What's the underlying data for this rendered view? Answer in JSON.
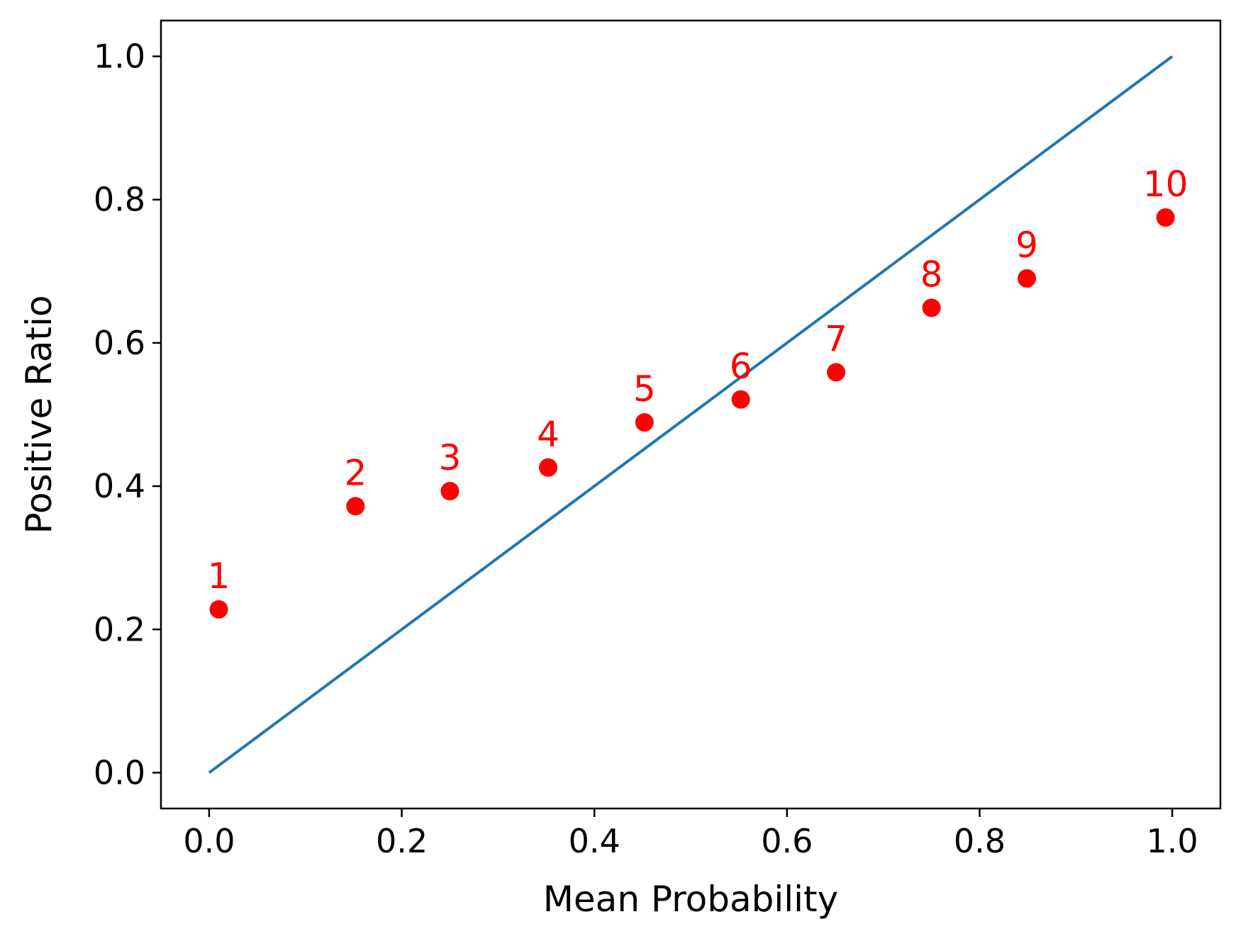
{
  "chart_data": {
    "type": "scatter",
    "title": "",
    "xlabel": "Mean Probability",
    "ylabel": "Positive Ratio",
    "xlim": [
      -0.05,
      1.05
    ],
    "ylim": [
      -0.05,
      1.05
    ],
    "xticks": [
      0.0,
      0.2,
      0.4,
      0.6,
      0.8,
      1.0
    ],
    "yticks": [
      0.0,
      0.2,
      0.4,
      0.6,
      0.8,
      1.0
    ],
    "tick_labels": {
      "x": [
        "0.0",
        "0.2",
        "0.4",
        "0.6",
        "0.8",
        "1.0"
      ],
      "y": [
        "0.0",
        "0.2",
        "0.4",
        "0.6",
        "0.8",
        "1.0"
      ]
    },
    "grid": false,
    "reference_line": {
      "x": [
        0.0,
        1.0
      ],
      "y": [
        0.0,
        1.0
      ],
      "color": "#1f77b4"
    },
    "points": [
      {
        "label": "1",
        "x": 0.01,
        "y": 0.228
      },
      {
        "label": "2",
        "x": 0.152,
        "y": 0.372
      },
      {
        "label": "3",
        "x": 0.25,
        "y": 0.393
      },
      {
        "label": "4",
        "x": 0.352,
        "y": 0.426
      },
      {
        "label": "5",
        "x": 0.452,
        "y": 0.489
      },
      {
        "label": "6",
        "x": 0.552,
        "y": 0.521
      },
      {
        "label": "7",
        "x": 0.651,
        "y": 0.559
      },
      {
        "label": "8",
        "x": 0.75,
        "y": 0.649
      },
      {
        "label": "9",
        "x": 0.849,
        "y": 0.69
      },
      {
        "label": "10",
        "x": 0.993,
        "y": 0.775
      }
    ],
    "point_color": "#ff0000"
  }
}
